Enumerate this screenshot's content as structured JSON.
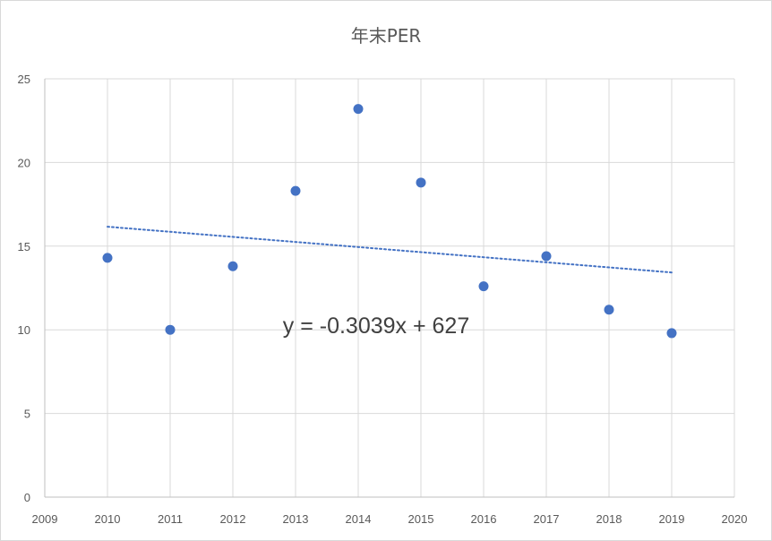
{
  "chart_data": {
    "type": "scatter",
    "title": "年末PER",
    "xlabel": "",
    "ylabel": "",
    "xlim": [
      2009,
      2020
    ],
    "ylim": [
      0,
      25
    ],
    "x_ticks": [
      2009,
      2010,
      2011,
      2012,
      2013,
      2014,
      2015,
      2016,
      2017,
      2018,
      2019,
      2020
    ],
    "y_ticks": [
      0,
      5,
      10,
      15,
      20,
      25
    ],
    "grid": true,
    "legend": "none",
    "series": [
      {
        "color": "#4472c4",
        "x": [
          2010,
          2011,
          2012,
          2013,
          2014,
          2015,
          2016,
          2017,
          2018,
          2019
        ],
        "y": [
          14.3,
          10.0,
          13.8,
          18.3,
          23.2,
          18.8,
          12.6,
          14.4,
          11.2,
          9.8
        ]
      }
    ],
    "trendline": {
      "type": "linear",
      "style": "dotted",
      "color": "#4472c4",
      "equation": "y = -0.3039x + 627",
      "slope": -0.3039,
      "intercept": 627,
      "x_range": [
        2010,
        2019
      ]
    }
  }
}
